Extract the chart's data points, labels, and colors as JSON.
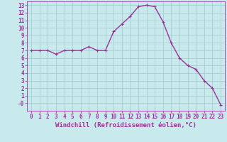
{
  "x": [
    0,
    1,
    2,
    3,
    4,
    5,
    6,
    7,
    8,
    9,
    10,
    11,
    12,
    13,
    14,
    15,
    16,
    17,
    18,
    19,
    20,
    21,
    22,
    23
  ],
  "y": [
    7,
    7,
    7,
    6.5,
    7,
    7,
    7,
    7.5,
    7,
    7,
    9.5,
    10.5,
    11.5,
    12.8,
    13,
    12.8,
    10.8,
    8,
    6,
    5,
    4.5,
    3,
    2,
    -0.2
  ],
  "line_color": "#993399",
  "marker": "+",
  "xlabel": "Windchill (Refroidissement éolien,°C)",
  "ylabel": "",
  "xlim": [
    -0.5,
    23.5
  ],
  "ylim": [
    -1,
    13.5
  ],
  "ytick_vals": [
    0,
    1,
    2,
    3,
    4,
    5,
    6,
    7,
    8,
    9,
    10,
    11,
    12,
    13
  ],
  "ytick_labels": [
    "-0",
    "1",
    "2",
    "3",
    "4",
    "5",
    "6",
    "7",
    "8",
    "9",
    "10",
    "11",
    "12",
    "13"
  ],
  "xticks": [
    0,
    1,
    2,
    3,
    4,
    5,
    6,
    7,
    8,
    9,
    10,
    11,
    12,
    13,
    14,
    15,
    16,
    17,
    18,
    19,
    20,
    21,
    22,
    23
  ],
  "background_color": "#c8eaed",
  "grid_color": "#a0c8cc",
  "spine_color": "#993399",
  "tick_color": "#993399",
  "label_color": "#993399",
  "font_size_xlabel": 6.5,
  "font_size_ticks": 5.5,
  "linewidth": 1.0,
  "markersize": 3
}
